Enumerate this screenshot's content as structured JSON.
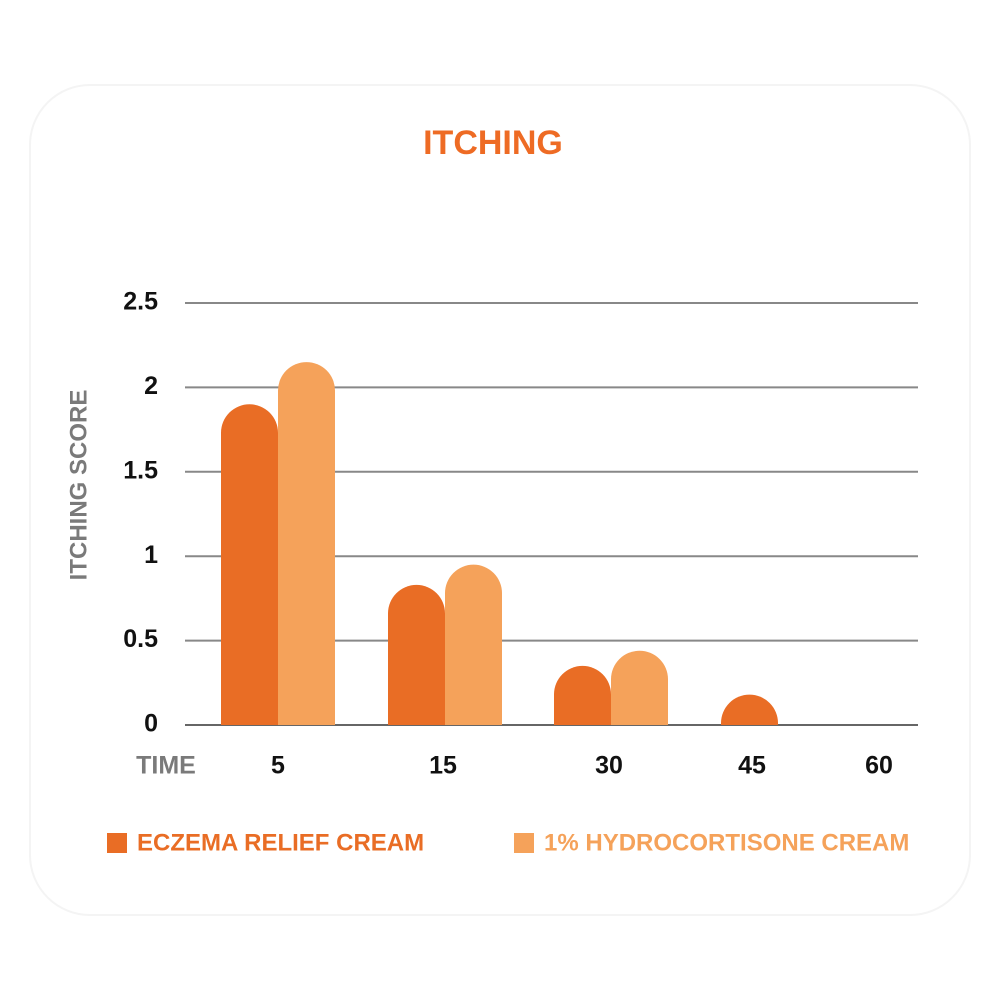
{
  "chart_data": {
    "type": "bar",
    "title": "ITCHING",
    "x_label": "TIME",
    "y_label": "ITCHING SCORE",
    "categories": [
      "5",
      "15",
      "30",
      "45",
      "60"
    ],
    "series": [
      {
        "name": "ECZEMA RELIEF CREAM",
        "color": "#e96d25",
        "values": [
          1.9,
          0.83,
          0.35,
          0.18,
          0
        ]
      },
      {
        "name": "1% HYDROCORTISONE CREAM",
        "color": "#f5a25a",
        "values": [
          2.15,
          0.95,
          0.44,
          0,
          0
        ]
      }
    ],
    "ylim": [
      0,
      2.5
    ],
    "yticks": [
      0,
      0.5,
      1,
      1.5,
      2,
      2.5
    ],
    "grid": true
  }
}
